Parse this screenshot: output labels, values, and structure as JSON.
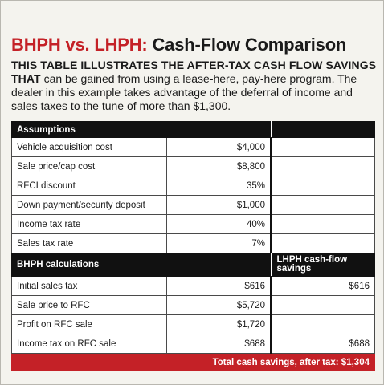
{
  "title": {
    "part1": "BHPH vs. LHPH:",
    "part2": "Cash-Flow Comparison"
  },
  "intro": {
    "lead": "THIS TABLE ILLUSTRATES THE AFTER-TAX CASH FLOW SAVINGS THAT",
    "body": "can be gained from using a lease-here, pay-here program. The dealer in this example takes advantage of the deferral of income and sales taxes to the tune of more than $1,300."
  },
  "table": {
    "assumptions_header": "Assumptions",
    "assumptions": [
      {
        "label": "Vehicle acquisition cost",
        "value": "$4,000"
      },
      {
        "label": "Sale price/cap cost",
        "value": "$8,800"
      },
      {
        "label": "RFCI discount",
        "value": "35%"
      },
      {
        "label": "Down payment/security deposit",
        "value": "$1,000"
      },
      {
        "label": "Income tax rate",
        "value": "40%"
      },
      {
        "label": "Sales tax rate",
        "value": "7%"
      }
    ],
    "bhph_header": "BHPH calculations",
    "lhph_header": "LHPH cash-flow savings",
    "calculations": [
      {
        "label": "Initial sales tax",
        "bhph": "$616",
        "lhph": "$616"
      },
      {
        "label": "Sale price to RFC",
        "bhph": "$5,720",
        "lhph": ""
      },
      {
        "label": "Profit on RFC sale",
        "bhph": "$1,720",
        "lhph": ""
      },
      {
        "label": "Income tax on RFC sale",
        "bhph": "$688",
        "lhph": "$688"
      }
    ],
    "footer": "Total cash savings, after tax: $1,304"
  },
  "colors": {
    "accent_red": "#c42127",
    "header_black": "#111111",
    "card_background": "#f4f3ee"
  }
}
